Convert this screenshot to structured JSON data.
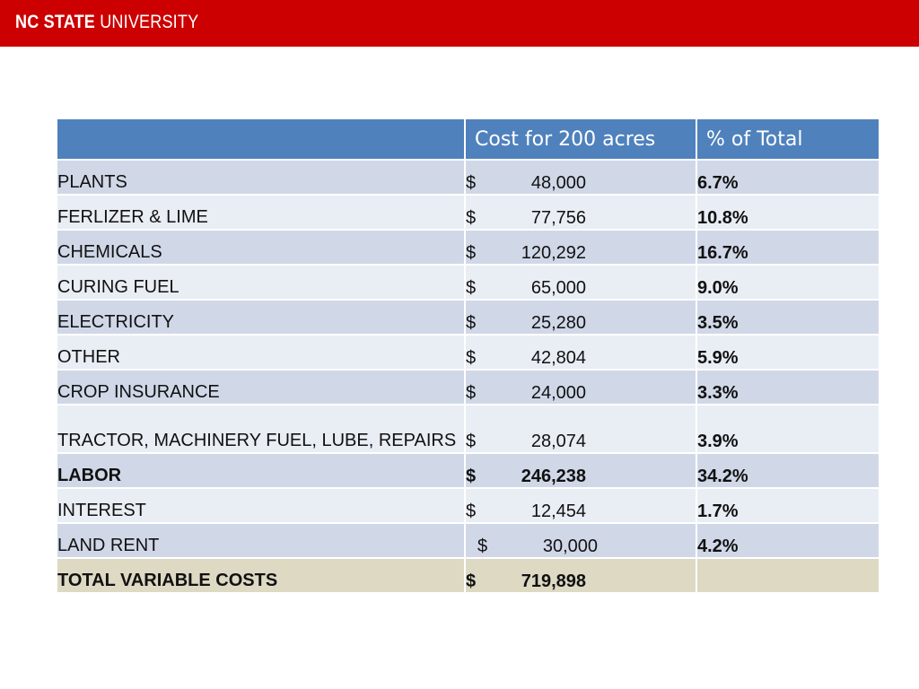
{
  "header": {
    "brand_bold": "NC STATE",
    "brand_light": "UNIVERSITY",
    "colors": {
      "banner": "#cc0000",
      "table_header": "#4f81bd",
      "row_odd": "#d0d8e8",
      "row_even": "#e9edf4",
      "row_total": "#ddd9c3"
    }
  },
  "table": {
    "columns": [
      "",
      "Cost for 200 acres",
      "% of Total"
    ],
    "rows": [
      {
        "item": "PLANTS",
        "currency": "$",
        "amount": "48,000",
        "pct": "6.7%"
      },
      {
        "item": "FERLIZER & LIME",
        "currency": "$",
        "amount": "77,756",
        "pct": "10.8%"
      },
      {
        "item": "CHEMICALS",
        "currency": "$",
        "amount": "120,292",
        "pct": "16.7%"
      },
      {
        "item": "CURING FUEL",
        "currency": "$",
        "amount": "65,000",
        "pct": "9.0%"
      },
      {
        "item": "ELECTRICITY",
        "currency": "$",
        "amount": "25,280",
        "pct": "3.5%"
      },
      {
        "item": "OTHER",
        "currency": "$",
        "amount": "42,804",
        "pct": "5.9%"
      },
      {
        "item": "CROP INSURANCE",
        "currency": "$",
        "amount": "24,000",
        "pct": "3.3%"
      },
      {
        "item": "TRACTOR, MACHINERY FUEL, LUBE, REPAIRS",
        "currency": "$",
        "amount": "28,074",
        "pct": "3.9%"
      },
      {
        "item": "LABOR",
        "currency": "$",
        "amount": "246,238",
        "pct": "34.2%"
      },
      {
        "item": "INTEREST",
        "currency": "$",
        "amount": "12,454",
        "pct": "1.7%"
      },
      {
        "item": "LAND RENT",
        "currency": "$",
        "amount": "30,000",
        "pct": "4.2%"
      }
    ],
    "total": {
      "item": "TOTAL VARIABLE COSTS",
      "currency": "$",
      "amount": "719,898",
      "pct": ""
    }
  }
}
